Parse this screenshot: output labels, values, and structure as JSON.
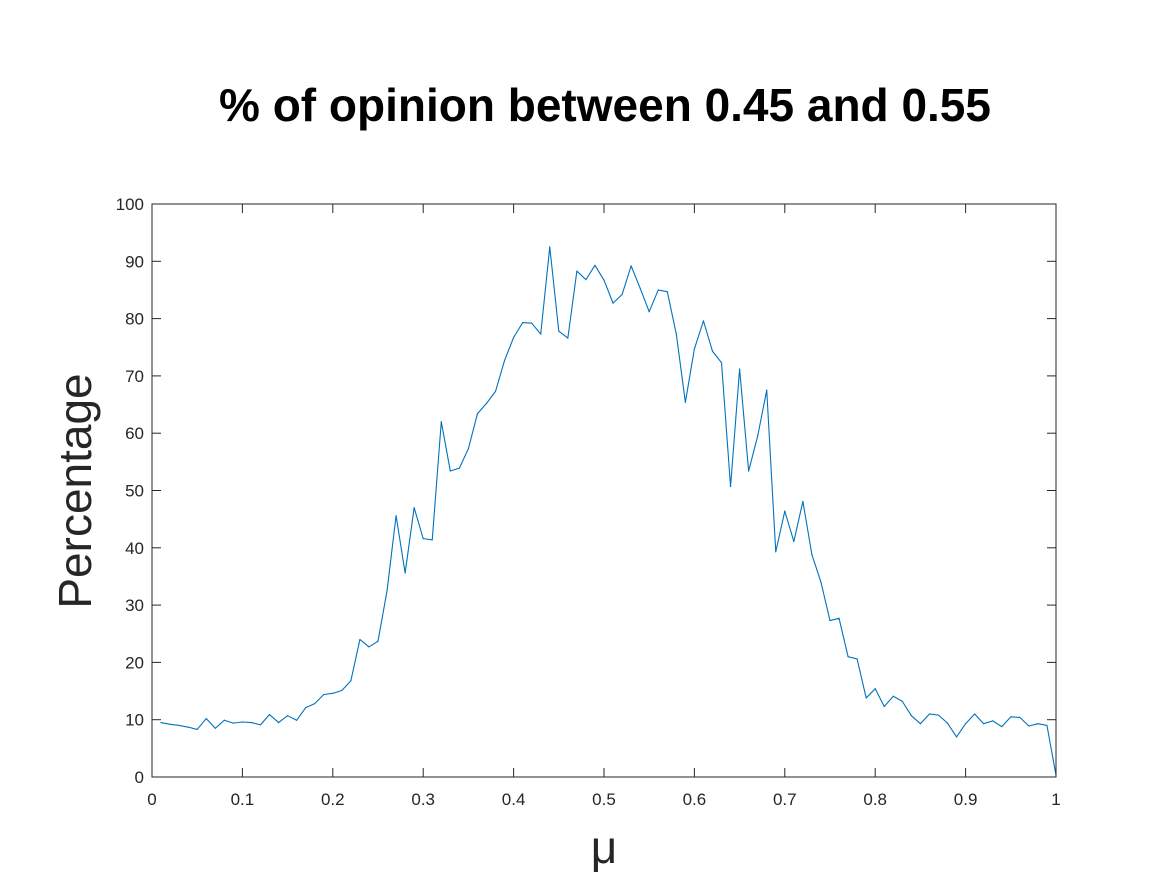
{
  "chart_data": {
    "type": "line",
    "title": "% of opinion between 0.45 and 0.55",
    "xlabel": "μ",
    "ylabel": "Percentage",
    "xlim": [
      0,
      1
    ],
    "ylim": [
      0,
      100
    ],
    "xticks": [
      "0",
      "0.1",
      "0.2",
      "0.3",
      "0.4",
      "0.5",
      "0.6",
      "0.7",
      "0.8",
      "0.9",
      "1"
    ],
    "yticks": [
      "0",
      "10",
      "20",
      "30",
      "40",
      "50",
      "60",
      "70",
      "80",
      "90",
      "100"
    ],
    "grid": false,
    "series": [
      {
        "color": "#0072BD",
        "x": [
          0.01,
          0.02,
          0.03,
          0.04,
          0.05,
          0.06,
          0.07,
          0.08,
          0.09,
          0.1,
          0.11,
          0.12,
          0.13,
          0.14,
          0.15,
          0.16,
          0.17,
          0.18,
          0.19,
          0.2,
          0.21,
          0.22,
          0.23,
          0.24,
          0.25,
          0.26,
          0.27,
          0.28,
          0.29,
          0.3,
          0.31,
          0.32,
          0.33,
          0.34,
          0.35,
          0.36,
          0.37,
          0.38,
          0.39,
          0.4,
          0.41,
          0.42,
          0.43,
          0.44,
          0.45,
          0.46,
          0.47,
          0.48,
          0.49,
          0.5,
          0.51,
          0.52,
          0.53,
          0.54,
          0.55,
          0.56,
          0.57,
          0.58,
          0.59,
          0.6,
          0.61,
          0.62,
          0.63,
          0.64,
          0.65,
          0.66,
          0.67,
          0.68,
          0.69,
          0.7,
          0.71,
          0.72,
          0.73,
          0.74,
          0.75,
          0.76,
          0.77,
          0.78,
          0.79,
          0.8,
          0.81,
          0.82,
          0.83,
          0.84,
          0.85,
          0.86,
          0.87,
          0.88,
          0.89,
          0.9,
          0.91,
          0.92,
          0.93,
          0.94,
          0.95,
          0.96,
          0.97,
          0.98,
          0.99,
          1.0
        ],
        "y": [
          9.5,
          9.2,
          9.0,
          8.7,
          8.3,
          10.2,
          8.5,
          9.9,
          9.4,
          9.6,
          9.5,
          9.1,
          10.9,
          9.5,
          10.7,
          9.9,
          12.1,
          12.8,
          14.4,
          14.6,
          15.1,
          16.8,
          24.0,
          22.7,
          23.7,
          32.5,
          45.6,
          35.6,
          47.0,
          41.6,
          41.4,
          62.0,
          53.4,
          53.9,
          57.3,
          63.4,
          65.2,
          67.3,
          72.7,
          76.7,
          79.3,
          79.2,
          77.3,
          92.5,
          77.8,
          76.6,
          88.3,
          86.8,
          89.3,
          86.7,
          82.7,
          84.2,
          89.2,
          85.3,
          81.2,
          85.0,
          84.7,
          77.3,
          65.4,
          74.7,
          79.6,
          74.3,
          72.3,
          50.7,
          71.2,
          53.4,
          59.5,
          67.5,
          39.3,
          46.4,
          41.1,
          48.1,
          38.8,
          34.0,
          27.3,
          27.7,
          21.0,
          20.6,
          13.8,
          15.4,
          12.3,
          14.1,
          13.2,
          10.7,
          9.3,
          11.0,
          10.8,
          9.4,
          7.0,
          9.3,
          11.0,
          9.3,
          9.8,
          8.8,
          10.5,
          10.4,
          8.9,
          9.3,
          9.0,
          0.3
        ]
      }
    ]
  }
}
